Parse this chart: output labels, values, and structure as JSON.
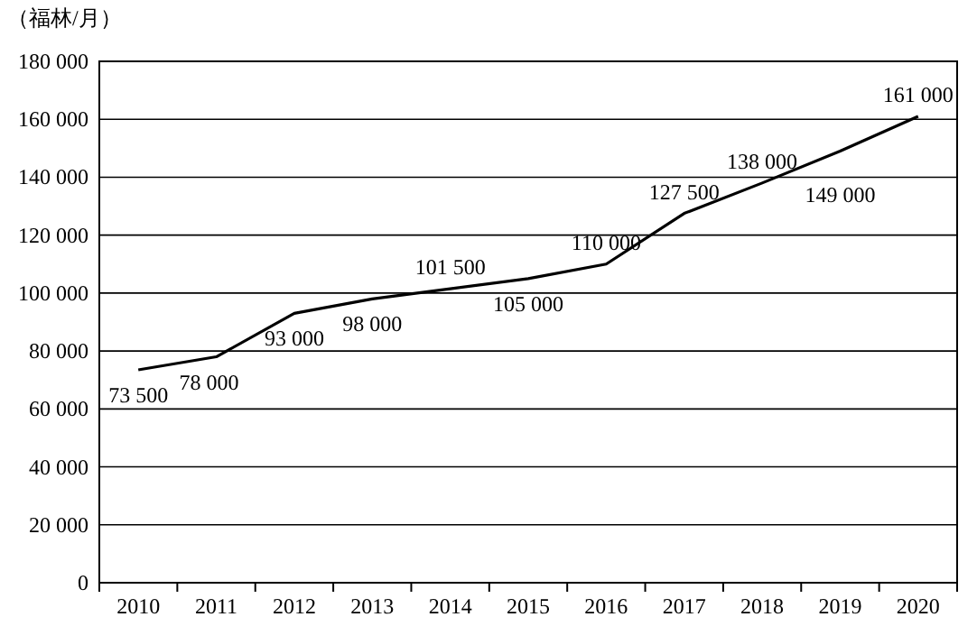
{
  "chart_data": {
    "type": "line",
    "ylabel": "（福林/月）",
    "categories": [
      "2010",
      "2011",
      "2012",
      "2013",
      "2014",
      "2015",
      "2016",
      "2017",
      "2018",
      "2019",
      "2020"
    ],
    "series": [
      {
        "color": "#000000",
        "values": [
          73500,
          78000,
          93000,
          98000,
          101500,
          105000,
          110000,
          127500,
          138000,
          149000,
          161000
        ],
        "value_labels": [
          "73 500",
          "78 000",
          "93 000",
          "98 000",
          "101 500",
          "105 000",
          "110 000",
          "127 500",
          "138 000",
          "149 000",
          "161 000"
        ]
      }
    ],
    "ylim": [
      0,
      180000
    ],
    "yticks": [
      0,
      {
        "value": 20000,
        "label": "20 000"
      },
      {
        "value": 40000,
        "label": "40 000"
      },
      {
        "value": 60000,
        "label": "60 000"
      },
      {
        "value": 80000,
        "label": "80 000"
      },
      {
        "value": 100000,
        "label": "100 000"
      },
      {
        "value": 120000,
        "label": "120 000"
      },
      {
        "value": 140000,
        "label": "140 000"
      },
      {
        "value": 160000,
        "label": "160 000"
      },
      {
        "value": 180000,
        "label": "180 000"
      }
    ],
    "grid": "y",
    "marker": "none",
    "line_style": "solid"
  }
}
